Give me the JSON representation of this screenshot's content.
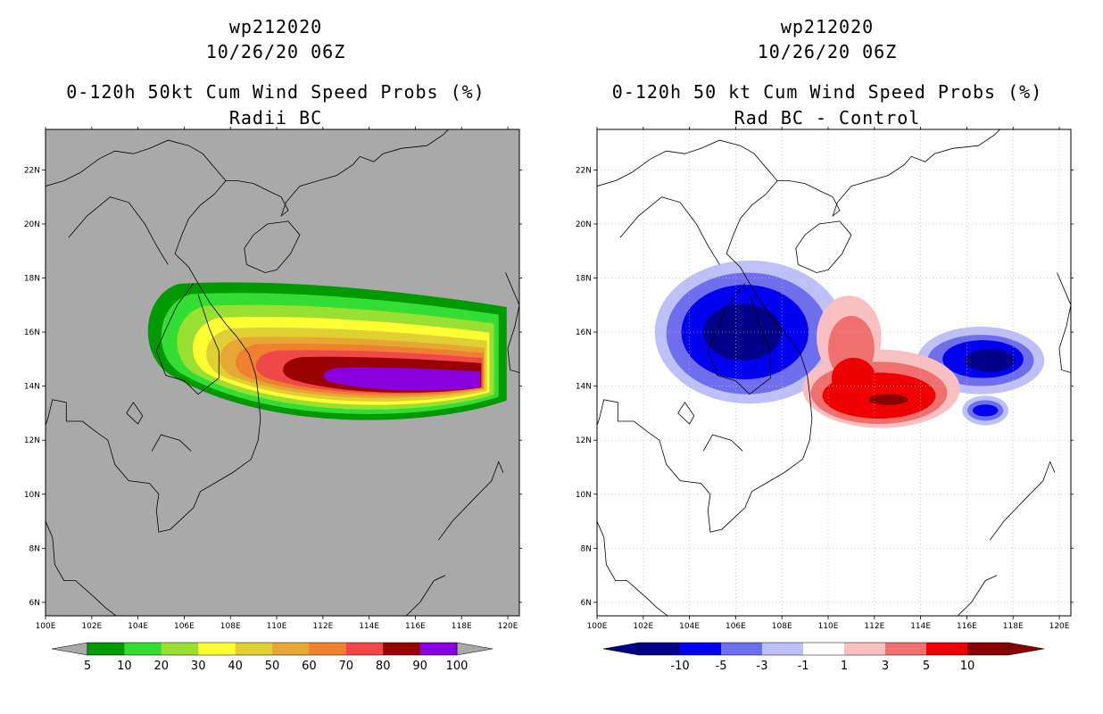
{
  "left": {
    "storm_id": "wp212020",
    "datetime": "10/26/20 06Z",
    "title": "0-120h 50kt Cum Wind Speed Probs (%)",
    "subtitle": "Radii BC",
    "map_background": "#a9a9a9",
    "colorbar": {
      "colors": [
        "#009900",
        "#33dd33",
        "#99e033",
        "#ffff33",
        "#e0d033",
        "#e6a833",
        "#ee8030",
        "#f04848",
        "#990000",
        "#8800dd"
      ],
      "labels": [
        "5",
        "10",
        "20",
        "30",
        "40",
        "50",
        "60",
        "70",
        "80",
        "90",
        "100"
      ]
    }
  },
  "right": {
    "storm_id": "wp212020",
    "datetime": "10/26/20 06Z",
    "title": "0-120h 50 kt Cum Wind Speed Probs (%)",
    "subtitle": "Rad BC - Control",
    "map_background": "#ffffff",
    "colorbar": {
      "colors": [
        "#000088",
        "#0000ee",
        "#6f6fee",
        "#c0c0f8",
        "#ffffff",
        "#f8c0c0",
        "#f07070",
        "#ee0000",
        "#880000"
      ],
      "labels": [
        "-10",
        "-5",
        "-3",
        "-1",
        "1",
        "3",
        "5",
        "10"
      ]
    }
  },
  "axes": {
    "lon_labels": [
      "100E",
      "102E",
      "104E",
      "106E",
      "108E",
      "110E",
      "112E",
      "114E",
      "116E",
      "118E",
      "120E"
    ],
    "lat_labels": [
      "6N",
      "8N",
      "10N",
      "12N",
      "14N",
      "16N",
      "18N",
      "20N",
      "22N"
    ],
    "lon_range": [
      100,
      120.5
    ],
    "lat_range": [
      5.5,
      23.5
    ]
  },
  "prob_centers": {
    "left_track_axis": [
      {
        "lon": 107.0,
        "lat": 15.3
      },
      {
        "lon": 110.0,
        "lat": 14.8
      },
      {
        "lon": 114.0,
        "lat": 14.2
      },
      {
        "lon": 119.3,
        "lat": 13.9
      }
    ],
    "right_diff_features": [
      {
        "sign": "negative",
        "lon": 106.3,
        "lat": 16.0,
        "peak": "-10"
      },
      {
        "sign": "negative",
        "lon": 116.8,
        "lat": 15.0,
        "peak": "-10"
      },
      {
        "sign": "negative",
        "lon": 116.8,
        "lat": 13.1,
        "peak": "-5"
      },
      {
        "sign": "positive",
        "lon": 112.5,
        "lat": 13.5,
        "peak": "10"
      }
    ]
  }
}
